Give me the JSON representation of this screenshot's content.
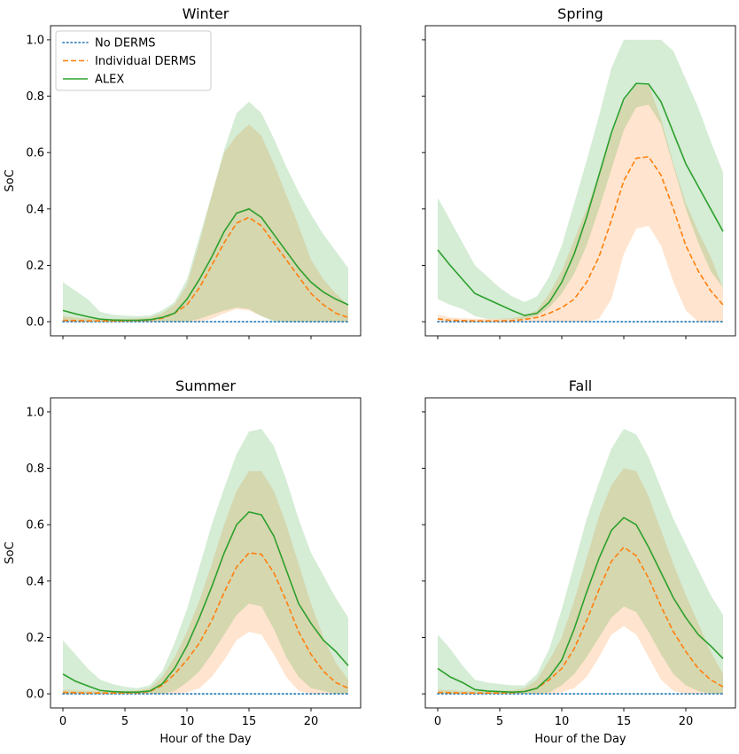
{
  "chart_data": [
    {
      "type": "line",
      "title": "Winter",
      "xlabel": "",
      "ylabel": "SoC",
      "xlim": [
        -1,
        24
      ],
      "ylim": [
        -0.05,
        1.05
      ],
      "xticks": [
        0,
        5,
        10,
        15,
        20
      ],
      "yticks": [
        0.0,
        0.2,
        0.4,
        0.6,
        0.8,
        1.0
      ],
      "x": [
        0,
        1,
        2,
        3,
        4,
        5,
        6,
        7,
        8,
        9,
        10,
        11,
        12,
        13,
        14,
        15,
        16,
        17,
        18,
        19,
        20,
        21,
        22,
        23
      ],
      "series": [
        {
          "name": "No DERMS",
          "style": "dotted",
          "color": "#1f77b4",
          "values": [
            0,
            0,
            0,
            0,
            0,
            0,
            0,
            0,
            0,
            0,
            0,
            0,
            0,
            0,
            0,
            0,
            0,
            0,
            0,
            0,
            0,
            0,
            0,
            0
          ]
        },
        {
          "name": "Individual DERMS",
          "style": "dashed",
          "color": "#ff7f0e",
          "values": [
            0.005,
            0.004,
            0.003,
            0.003,
            0.003,
            0.003,
            0.004,
            0.006,
            0.012,
            0.03,
            0.06,
            0.12,
            0.2,
            0.28,
            0.35,
            0.37,
            0.34,
            0.28,
            0.22,
            0.16,
            0.1,
            0.06,
            0.03,
            0.015
          ],
          "band_low": [
            0,
            0,
            0,
            0,
            0,
            0,
            0,
            0,
            0,
            0,
            0,
            0,
            0.01,
            0.03,
            0.045,
            0.04,
            0.02,
            0.005,
            0,
            0,
            0,
            0,
            0,
            0
          ],
          "band_high": [
            0.02,
            0.015,
            0.012,
            0.01,
            0.01,
            0.01,
            0.012,
            0.015,
            0.03,
            0.06,
            0.13,
            0.28,
            0.45,
            0.6,
            0.66,
            0.7,
            0.66,
            0.56,
            0.45,
            0.34,
            0.22,
            0.15,
            0.1,
            0.06
          ]
        },
        {
          "name": "ALEX",
          "style": "solid",
          "color": "#2ca02c",
          "values": [
            0.04,
            0.028,
            0.018,
            0.009,
            0.006,
            0.005,
            0.005,
            0.007,
            0.015,
            0.03,
            0.08,
            0.15,
            0.23,
            0.32,
            0.385,
            0.4,
            0.37,
            0.31,
            0.25,
            0.19,
            0.14,
            0.105,
            0.08,
            0.06
          ],
          "band_low": [
            0,
            0,
            0,
            0,
            0,
            0,
            0,
            0,
            0,
            0,
            0,
            0.01,
            0.025,
            0.04,
            0.05,
            0.045,
            0.02,
            0,
            0,
            0,
            0,
            0,
            0,
            0
          ],
          "band_high": [
            0.14,
            0.11,
            0.08,
            0.035,
            0.025,
            0.022,
            0.02,
            0.022,
            0.04,
            0.07,
            0.15,
            0.3,
            0.45,
            0.61,
            0.74,
            0.78,
            0.74,
            0.65,
            0.55,
            0.46,
            0.38,
            0.31,
            0.25,
            0.19
          ]
        }
      ],
      "legend": {
        "position": "upper-left",
        "entries": [
          "No DERMS",
          "Individual DERMS",
          "ALEX"
        ]
      }
    },
    {
      "type": "line",
      "title": "Spring",
      "xlabel": "",
      "ylabel": "",
      "xlim": [
        -1,
        24
      ],
      "ylim": [
        -0.05,
        1.05
      ],
      "xticks": [
        0,
        5,
        10,
        15,
        20
      ],
      "yticks": [
        0.0,
        0.2,
        0.4,
        0.6,
        0.8,
        1.0
      ],
      "x": [
        0,
        1,
        2,
        3,
        4,
        5,
        6,
        7,
        8,
        9,
        10,
        11,
        12,
        13,
        14,
        15,
        16,
        17,
        18,
        19,
        20,
        21,
        22,
        23
      ],
      "series": [
        {
          "name": "No DERMS",
          "style": "dotted",
          "color": "#1f77b4",
          "values": [
            0,
            0,
            0,
            0,
            0,
            0,
            0,
            0,
            0,
            0,
            0,
            0,
            0,
            0,
            0,
            0,
            0,
            0,
            0,
            0,
            0,
            0,
            0,
            0
          ]
        },
        {
          "name": "Individual DERMS",
          "style": "dashed",
          "color": "#ff7f0e",
          "values": [
            0.01,
            0.005,
            0.004,
            0.003,
            0.003,
            0.003,
            0.004,
            0.008,
            0.015,
            0.03,
            0.05,
            0.08,
            0.14,
            0.23,
            0.36,
            0.5,
            0.58,
            0.585,
            0.52,
            0.4,
            0.27,
            0.18,
            0.11,
            0.06
          ],
          "band_low": [
            0,
            0,
            0,
            0,
            0,
            0,
            0,
            0,
            0,
            0,
            0,
            0,
            0,
            0.01,
            0.08,
            0.24,
            0.33,
            0.34,
            0.27,
            0.14,
            0.04,
            0,
            0,
            0
          ],
          "band_high": [
            0.025,
            0.015,
            0.012,
            0.01,
            0.01,
            0.01,
            0.012,
            0.02,
            0.04,
            0.1,
            0.18,
            0.29,
            0.4,
            0.52,
            0.66,
            0.78,
            0.84,
            0.84,
            0.72,
            0.56,
            0.42,
            0.32,
            0.23,
            0.12
          ]
        },
        {
          "name": "ALEX",
          "style": "solid",
          "color": "#2ca02c",
          "values": [
            0.255,
            0.2,
            0.15,
            0.1,
            0.08,
            0.06,
            0.04,
            0.022,
            0.03,
            0.07,
            0.14,
            0.24,
            0.37,
            0.52,
            0.67,
            0.79,
            0.845,
            0.843,
            0.78,
            0.67,
            0.56,
            0.48,
            0.4,
            0.32
          ],
          "band_low": [
            0.08,
            0.06,
            0.045,
            0.02,
            0.01,
            0.008,
            0.008,
            0.01,
            0.02,
            0.05,
            0.1,
            0.17,
            0.27,
            0.4,
            0.54,
            0.68,
            0.76,
            0.77,
            0.7,
            0.55,
            0.4,
            0.28,
            0.18,
            0.12
          ],
          "band_high": [
            0.44,
            0.36,
            0.28,
            0.2,
            0.16,
            0.12,
            0.09,
            0.07,
            0.09,
            0.16,
            0.27,
            0.42,
            0.57,
            0.73,
            0.9,
            1.0,
            1.0,
            1.0,
            1.0,
            0.96,
            0.86,
            0.76,
            0.64,
            0.53
          ]
        }
      ],
      "legend": null
    },
    {
      "type": "line",
      "title": "Summer",
      "xlabel": "Hour of the Day",
      "ylabel": "SoC",
      "xlim": [
        -1,
        24
      ],
      "ylim": [
        -0.05,
        1.05
      ],
      "xticks": [
        0,
        5,
        10,
        15,
        20
      ],
      "yticks": [
        0.0,
        0.2,
        0.4,
        0.6,
        0.8,
        1.0
      ],
      "x": [
        0,
        1,
        2,
        3,
        4,
        5,
        6,
        7,
        8,
        9,
        10,
        11,
        12,
        13,
        14,
        15,
        16,
        17,
        18,
        19,
        20,
        21,
        22,
        23
      ],
      "series": [
        {
          "name": "No DERMS",
          "style": "dotted",
          "color": "#1f77b4",
          "values": [
            0,
            0,
            0,
            0,
            0,
            0,
            0,
            0,
            0,
            0,
            0,
            0,
            0,
            0,
            0,
            0,
            0,
            0,
            0,
            0,
            0,
            0,
            0,
            0
          ]
        },
        {
          "name": "Individual DERMS",
          "style": "dashed",
          "color": "#ff7f0e",
          "values": [
            0.005,
            0.004,
            0.003,
            0.003,
            0.003,
            0.003,
            0.004,
            0.008,
            0.03,
            0.07,
            0.12,
            0.18,
            0.26,
            0.36,
            0.45,
            0.5,
            0.495,
            0.43,
            0.33,
            0.22,
            0.14,
            0.08,
            0.04,
            0.02
          ],
          "band_low": [
            0,
            0,
            0,
            0,
            0,
            0,
            0,
            0,
            0,
            0,
            0.005,
            0.02,
            0.06,
            0.12,
            0.19,
            0.22,
            0.21,
            0.14,
            0.06,
            0.01,
            0,
            0,
            0,
            0
          ],
          "band_high": [
            0.015,
            0.012,
            0.01,
            0.01,
            0.01,
            0.01,
            0.012,
            0.02,
            0.06,
            0.13,
            0.22,
            0.33,
            0.46,
            0.6,
            0.72,
            0.79,
            0.79,
            0.72,
            0.6,
            0.46,
            0.32,
            0.2,
            0.11,
            0.05
          ]
        },
        {
          "name": "ALEX",
          "style": "solid",
          "color": "#2ca02c",
          "values": [
            0.07,
            0.045,
            0.028,
            0.012,
            0.008,
            0.006,
            0.006,
            0.01,
            0.035,
            0.09,
            0.17,
            0.27,
            0.38,
            0.5,
            0.6,
            0.645,
            0.635,
            0.56,
            0.44,
            0.32,
            0.25,
            0.19,
            0.15,
            0.1
          ],
          "band_low": [
            0,
            0,
            0,
            0,
            0,
            0,
            0,
            0,
            0,
            0.01,
            0.04,
            0.08,
            0.14,
            0.21,
            0.28,
            0.32,
            0.31,
            0.23,
            0.13,
            0.06,
            0.02,
            0.01,
            0,
            0
          ],
          "band_high": [
            0.19,
            0.14,
            0.09,
            0.05,
            0.035,
            0.025,
            0.02,
            0.03,
            0.08,
            0.18,
            0.3,
            0.45,
            0.6,
            0.73,
            0.85,
            0.93,
            0.94,
            0.88,
            0.76,
            0.62,
            0.5,
            0.42,
            0.34,
            0.27
          ]
        }
      ],
      "legend": null
    },
    {
      "type": "line",
      "title": "Fall",
      "xlabel": "Hour of the Day",
      "ylabel": "",
      "xlim": [
        -1,
        24
      ],
      "ylim": [
        -0.05,
        1.05
      ],
      "xticks": [
        0,
        5,
        10,
        15,
        20
      ],
      "yticks": [
        0.0,
        0.2,
        0.4,
        0.6,
        0.8,
        1.0
      ],
      "x": [
        0,
        1,
        2,
        3,
        4,
        5,
        6,
        7,
        8,
        9,
        10,
        11,
        12,
        13,
        14,
        15,
        16,
        17,
        18,
        19,
        20,
        21,
        22,
        23
      ],
      "series": [
        {
          "name": "No DERMS",
          "style": "dotted",
          "color": "#1f77b4",
          "values": [
            0,
            0,
            0,
            0,
            0,
            0,
            0,
            0,
            0,
            0,
            0,
            0,
            0,
            0,
            0,
            0,
            0,
            0,
            0,
            0,
            0,
            0,
            0,
            0
          ]
        },
        {
          "name": "Individual DERMS",
          "style": "dashed",
          "color": "#ff7f0e",
          "values": [
            0.005,
            0.004,
            0.003,
            0.003,
            0.003,
            0.003,
            0.004,
            0.008,
            0.02,
            0.05,
            0.09,
            0.16,
            0.26,
            0.37,
            0.47,
            0.52,
            0.49,
            0.41,
            0.31,
            0.22,
            0.15,
            0.09,
            0.05,
            0.025
          ],
          "band_low": [
            0,
            0,
            0,
            0,
            0,
            0,
            0,
            0,
            0,
            0,
            0.005,
            0.02,
            0.06,
            0.13,
            0.21,
            0.24,
            0.21,
            0.13,
            0.05,
            0.01,
            0,
            0,
            0,
            0
          ],
          "band_high": [
            0.015,
            0.012,
            0.01,
            0.01,
            0.01,
            0.01,
            0.012,
            0.02,
            0.05,
            0.12,
            0.2,
            0.33,
            0.48,
            0.63,
            0.74,
            0.8,
            0.79,
            0.7,
            0.58,
            0.46,
            0.35,
            0.25,
            0.15,
            0.07
          ]
        },
        {
          "name": "ALEX",
          "style": "solid",
          "color": "#2ca02c",
          "values": [
            0.09,
            0.06,
            0.04,
            0.015,
            0.01,
            0.008,
            0.006,
            0.008,
            0.02,
            0.06,
            0.12,
            0.23,
            0.36,
            0.48,
            0.58,
            0.625,
            0.6,
            0.52,
            0.43,
            0.34,
            0.27,
            0.21,
            0.17,
            0.125
          ],
          "band_low": [
            0,
            0,
            0,
            0,
            0,
            0,
            0,
            0,
            0,
            0.005,
            0.03,
            0.07,
            0.13,
            0.2,
            0.27,
            0.31,
            0.29,
            0.22,
            0.14,
            0.07,
            0.03,
            0.01,
            0,
            0
          ],
          "band_high": [
            0.21,
            0.16,
            0.1,
            0.05,
            0.04,
            0.035,
            0.03,
            0.03,
            0.07,
            0.16,
            0.3,
            0.46,
            0.62,
            0.75,
            0.87,
            0.94,
            0.92,
            0.84,
            0.73,
            0.62,
            0.53,
            0.44,
            0.35,
            0.28
          ]
        }
      ],
      "legend": null
    }
  ]
}
